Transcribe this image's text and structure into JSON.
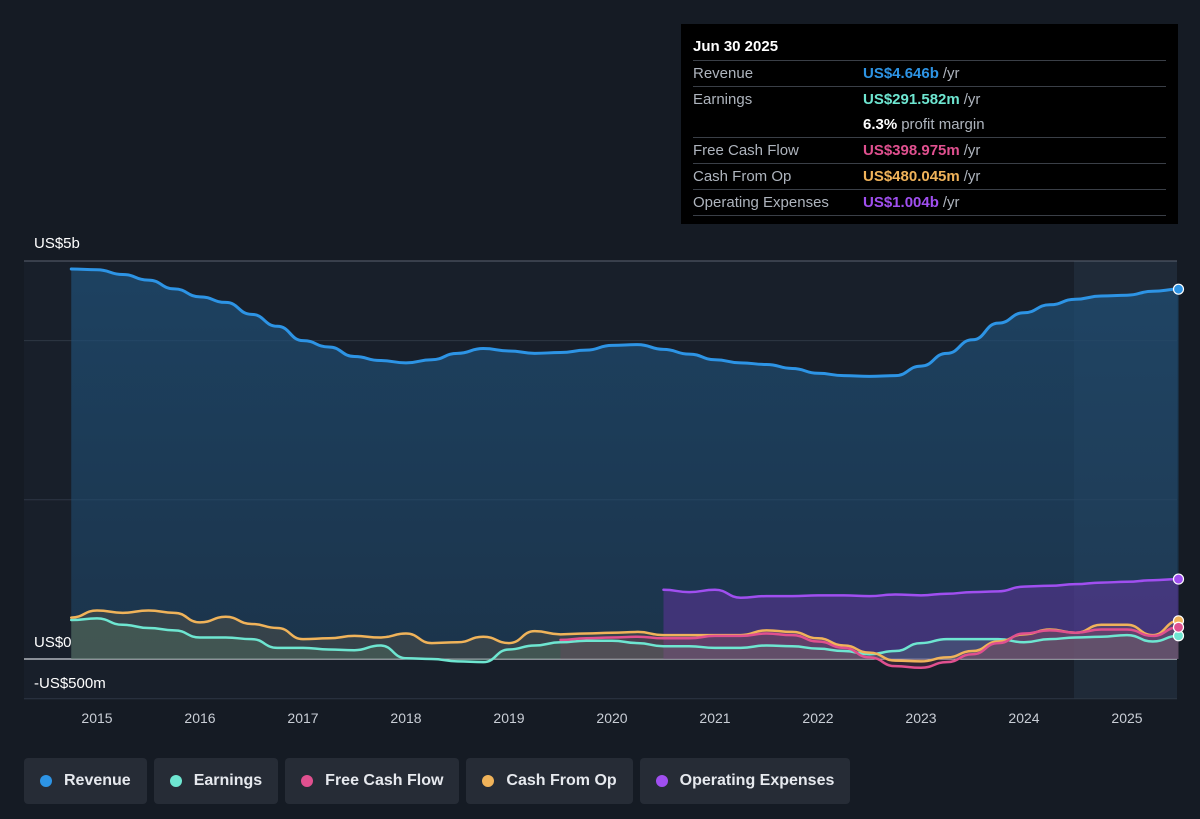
{
  "tooltip": {
    "date": "Jun 30 2025",
    "rows": [
      {
        "label": "Revenue",
        "value": "US$4.646b",
        "unit": "/yr",
        "color": "#2d94e5"
      },
      {
        "label": "Earnings",
        "value": "US$291.582m",
        "unit": "/yr",
        "color": "#6ee6d1"
      },
      {
        "label": "",
        "value": "6.3%",
        "unit": "profit margin",
        "color": "#ffffff"
      },
      {
        "label": "Free Cash Flow",
        "value": "US$398.975m",
        "unit": "/yr",
        "color": "#e0508f"
      },
      {
        "label": "Cash From Op",
        "value": "US$480.045m",
        "unit": "/yr",
        "color": "#f0b35a"
      },
      {
        "label": "Operating Expenses",
        "value": "US$1.004b",
        "unit": "/yr",
        "color": "#a04ff0"
      }
    ]
  },
  "legend": [
    {
      "label": "Revenue",
      "color": "#2d94e5"
    },
    {
      "label": "Earnings",
      "color": "#6ee6d1"
    },
    {
      "label": "Free Cash Flow",
      "color": "#e0508f"
    },
    {
      "label": "Cash From Op",
      "color": "#f0b35a"
    },
    {
      "label": "Operating Expenses",
      "color": "#a04ff0"
    }
  ],
  "chart_data": {
    "type": "line",
    "y_unit": "US$ millions",
    "ylim": [
      -500,
      5000
    ],
    "y_tick_labels": [
      {
        "value": 5000,
        "label": "US$5b"
      },
      {
        "value": 0,
        "label": "US$0"
      },
      {
        "value": -500,
        "label": "-US$500m"
      }
    ],
    "xlim": [
      2014.3,
      2025.5
    ],
    "x_tick_labels": [
      "2015",
      "2016",
      "2017",
      "2018",
      "2019",
      "2020",
      "2021",
      "2022",
      "2023",
      "2024",
      "2025"
    ],
    "grid": true,
    "legend_position": "bottom",
    "series": [
      {
        "name": "Revenue",
        "color": "#2d94e5",
        "x": [
          2014.75,
          2015.0,
          2015.25,
          2015.5,
          2015.75,
          2016.0,
          2016.25,
          2016.5,
          2016.75,
          2017.0,
          2017.25,
          2017.5,
          2017.75,
          2018.0,
          2018.25,
          2018.5,
          2018.75,
          2019.0,
          2019.25,
          2019.5,
          2019.75,
          2020.0,
          2020.25,
          2020.5,
          2020.75,
          2021.0,
          2021.25,
          2021.5,
          2021.75,
          2022.0,
          2022.25,
          2022.5,
          2022.75,
          2023.0,
          2023.25,
          2023.5,
          2023.75,
          2024.0,
          2024.25,
          2024.5,
          2024.75,
          2025.0,
          2025.25,
          2025.5
        ],
        "values": [
          4900,
          4890,
          4830,
          4760,
          4650,
          4550,
          4480,
          4330,
          4180,
          4000,
          3920,
          3800,
          3750,
          3720,
          3760,
          3840,
          3900,
          3870,
          3840,
          3850,
          3880,
          3940,
          3950,
          3890,
          3830,
          3760,
          3720,
          3700,
          3650,
          3590,
          3560,
          3550,
          3560,
          3680,
          3840,
          4010,
          4220,
          4350,
          4450,
          4520,
          4560,
          4570,
          4620,
          4646
        ]
      },
      {
        "name": "Earnings",
        "color": "#6ee6d1",
        "x": [
          2014.75,
          2015.0,
          2015.25,
          2015.5,
          2015.75,
          2016.0,
          2016.25,
          2016.5,
          2016.75,
          2017.0,
          2017.25,
          2017.5,
          2017.75,
          2018.0,
          2018.25,
          2018.5,
          2018.75,
          2019.0,
          2019.25,
          2019.5,
          2019.75,
          2020.0,
          2020.25,
          2020.5,
          2020.75,
          2021.0,
          2021.25,
          2021.5,
          2021.75,
          2022.0,
          2022.25,
          2022.5,
          2022.75,
          2023.0,
          2023.25,
          2023.5,
          2023.75,
          2024.0,
          2024.25,
          2024.5,
          2024.75,
          2025.0,
          2025.25,
          2025.5
        ],
        "values": [
          490,
          510,
          430,
          390,
          360,
          270,
          270,
          250,
          140,
          140,
          120,
          110,
          170,
          10,
          0,
          -30,
          -40,
          120,
          170,
          210,
          230,
          230,
          200,
          160,
          160,
          140,
          140,
          170,
          160,
          130,
          100,
          60,
          100,
          200,
          250,
          250,
          250,
          210,
          250,
          270,
          280,
          300,
          220,
          292
        ]
      },
      {
        "name": "Free Cash Flow",
        "color": "#e0508f",
        "x": [
          2019.5,
          2019.75,
          2020.0,
          2020.25,
          2020.5,
          2020.75,
          2021.0,
          2021.25,
          2021.5,
          2021.75,
          2022.0,
          2022.25,
          2022.5,
          2022.75,
          2023.0,
          2023.25,
          2023.5,
          2023.75,
          2024.0,
          2024.25,
          2024.5,
          2024.75,
          2025.0,
          2025.25,
          2025.5
        ],
        "values": [
          240,
          260,
          270,
          280,
          260,
          260,
          290,
          290,
          320,
          300,
          220,
          140,
          20,
          -90,
          -110,
          -40,
          60,
          200,
          320,
          360,
          330,
          370,
          370,
          290,
          399
        ]
      },
      {
        "name": "Cash From Op",
        "color": "#f0b35a",
        "x": [
          2014.75,
          2015.0,
          2015.25,
          2015.5,
          2015.75,
          2016.0,
          2016.25,
          2016.5,
          2016.75,
          2017.0,
          2017.25,
          2017.5,
          2017.75,
          2018.0,
          2018.25,
          2018.5,
          2018.75,
          2019.0,
          2019.25,
          2019.5,
          2019.75,
          2020.0,
          2020.25,
          2020.5,
          2020.75,
          2021.0,
          2021.25,
          2021.5,
          2021.75,
          2022.0,
          2022.25,
          2022.5,
          2022.75,
          2023.0,
          2023.25,
          2023.5,
          2023.75,
          2024.0,
          2024.25,
          2024.5,
          2024.75,
          2025.0,
          2025.25,
          2025.5
        ],
        "values": [
          520,
          610,
          580,
          610,
          580,
          460,
          530,
          440,
          390,
          250,
          260,
          290,
          270,
          320,
          200,
          210,
          280,
          200,
          350,
          310,
          320,
          330,
          340,
          300,
          300,
          300,
          300,
          360,
          340,
          260,
          170,
          80,
          -20,
          -30,
          20,
          100,
          220,
          310,
          370,
          330,
          430,
          430,
          300,
          480
        ]
      },
      {
        "name": "Operating Expenses",
        "color": "#a04ff0",
        "x": [
          2020.5,
          2020.75,
          2021.0,
          2021.25,
          2021.5,
          2021.75,
          2022.0,
          2022.25,
          2022.5,
          2022.75,
          2023.0,
          2023.25,
          2023.5,
          2023.75,
          2024.0,
          2024.25,
          2024.5,
          2024.75,
          2025.0,
          2025.25,
          2025.5
        ],
        "values": [
          870,
          840,
          870,
          770,
          790,
          790,
          800,
          800,
          790,
          810,
          800,
          820,
          840,
          850,
          910,
          920,
          940,
          960,
          970,
          990,
          1004
        ]
      }
    ]
  }
}
